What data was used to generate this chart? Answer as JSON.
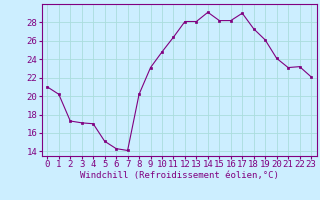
{
  "x": [
    0,
    1,
    2,
    3,
    4,
    5,
    6,
    7,
    8,
    9,
    10,
    11,
    12,
    13,
    14,
    15,
    16,
    17,
    18,
    19,
    20,
    21,
    22,
    23
  ],
  "y": [
    21.0,
    20.2,
    17.3,
    17.1,
    17.0,
    15.1,
    14.3,
    14.1,
    20.2,
    23.1,
    24.8,
    26.4,
    28.1,
    28.1,
    29.1,
    28.2,
    28.2,
    29.0,
    27.3,
    26.1,
    24.1,
    23.1,
    23.2,
    22.1
  ],
  "line_color": "#800080",
  "marker_color": "#800080",
  "bg_color": "#cceeff",
  "grid_color": "#aadddd",
  "xlabel": "Windchill (Refroidissement éolien,°C)",
  "ylim": [
    13.5,
    30.0
  ],
  "xlim": [
    -0.5,
    23.5
  ],
  "yticks": [
    14,
    16,
    18,
    20,
    22,
    24,
    26,
    28
  ],
  "xticks": [
    0,
    1,
    2,
    3,
    4,
    5,
    6,
    7,
    8,
    9,
    10,
    11,
    12,
    13,
    14,
    15,
    16,
    17,
    18,
    19,
    20,
    21,
    22,
    23
  ],
  "xtick_labels": [
    "0",
    "1",
    "2",
    "3",
    "4",
    "5",
    "6",
    "7",
    "8",
    "9",
    "10",
    "11",
    "12",
    "13",
    "14",
    "15",
    "16",
    "17",
    "18",
    "19",
    "20",
    "21",
    "22",
    "23"
  ],
  "font_family": "monospace",
  "xlabel_fontsize": 6.5,
  "tick_fontsize": 6.5
}
